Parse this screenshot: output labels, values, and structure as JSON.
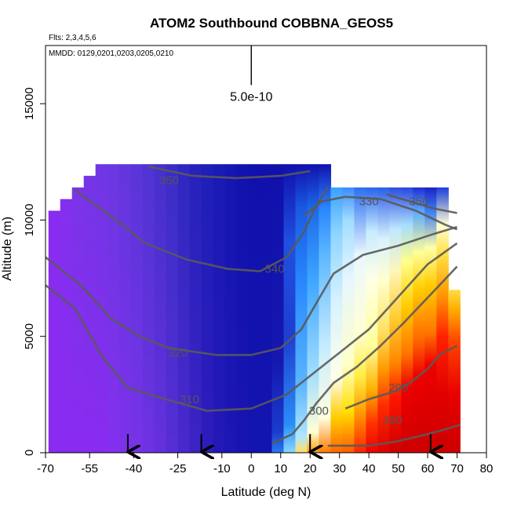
{
  "chart_data": {
    "type": "heatmap",
    "title": "ATOM2 Southbound COBBNA_GEOS5",
    "subtitle_flights": "Flts: 2,3,4,5,6",
    "subtitle_dates": "MMDD: 0129,0201,0203,0205,0210",
    "xlabel": "Latitude (deg N)",
    "ylabel": "Altitude (m)",
    "xlim": [
      -70,
      80
    ],
    "ylim": [
      0,
      17500
    ],
    "x_ticks": [
      -70,
      -55,
      -40,
      -25,
      -10,
      0,
      10,
      20,
      30,
      40,
      50,
      60,
      70,
      80
    ],
    "y_ticks": [
      0,
      5000,
      10000,
      15000
    ],
    "scale_bar_label": "5.0e-10",
    "scale_bar_x": 0,
    "scale_bar_y_range": [
      15800,
      17500
    ],
    "arrow_latitudes": [
      -42,
      -17,
      20,
      61
    ],
    "field_columns": [
      {
        "lat": -67,
        "top": 10400,
        "profile": [
          [
            0,
            "#8a2bf0"
          ],
          [
            10400,
            "#8a2bf0"
          ]
        ]
      },
      {
        "lat": -63,
        "top": 10900,
        "profile": [
          [
            0,
            "#8a2bf0"
          ],
          [
            10900,
            "#8330ee"
          ]
        ]
      },
      {
        "lat": -59,
        "top": 11400,
        "profile": [
          [
            0,
            "#8a2bf0"
          ],
          [
            11400,
            "#7a34e8"
          ]
        ]
      },
      {
        "lat": -55,
        "top": 11900,
        "profile": [
          [
            0,
            "#8a2bf0"
          ],
          [
            11900,
            "#7535e6"
          ]
        ]
      },
      {
        "lat": -51,
        "top": 12400,
        "profile": [
          [
            0,
            "#8a2bf0"
          ],
          [
            12400,
            "#7036e4"
          ]
        ]
      },
      {
        "lat": -47,
        "top": 12400,
        "profile": [
          [
            0,
            "#8430ee"
          ],
          [
            12400,
            "#6a37e0"
          ]
        ]
      },
      {
        "lat": -43,
        "top": 12400,
        "profile": [
          [
            0,
            "#7d31ea"
          ],
          [
            12400,
            "#6236dc"
          ]
        ]
      },
      {
        "lat": -39,
        "top": 12400,
        "profile": [
          [
            0,
            "#7733e8"
          ],
          [
            12400,
            "#5a35d8"
          ]
        ]
      },
      {
        "lat": -35,
        "top": 12400,
        "profile": [
          [
            0,
            "#6f32e2"
          ],
          [
            12400,
            "#5033d2"
          ]
        ]
      },
      {
        "lat": -31,
        "top": 12400,
        "profile": [
          [
            0,
            "#6530dc"
          ],
          [
            12400,
            "#4630cc"
          ]
        ]
      },
      {
        "lat": -27,
        "top": 12400,
        "profile": [
          [
            0,
            "#572ed4"
          ],
          [
            12400,
            "#3a2ec6"
          ]
        ]
      },
      {
        "lat": -23,
        "top": 12400,
        "profile": [
          [
            0,
            "#4a28cc"
          ],
          [
            12400,
            "#2f28c0"
          ]
        ]
      },
      {
        "lat": -19,
        "top": 12400,
        "profile": [
          [
            0,
            "#3c22c4"
          ],
          [
            12400,
            "#2622bc"
          ]
        ]
      },
      {
        "lat": -15,
        "top": 12400,
        "profile": [
          [
            0,
            "#2e1cbc"
          ],
          [
            12400,
            "#1e1eb8"
          ]
        ]
      },
      {
        "lat": -11,
        "top": 12400,
        "profile": [
          [
            0,
            "#2418b6"
          ],
          [
            12400,
            "#1a1ab4"
          ]
        ]
      },
      {
        "lat": -7,
        "top": 12400,
        "profile": [
          [
            0,
            "#1c16b2"
          ],
          [
            12400,
            "#1616b0"
          ]
        ]
      },
      {
        "lat": -3,
        "top": 12400,
        "profile": [
          [
            0,
            "#1814b0"
          ],
          [
            12400,
            "#1212ae"
          ]
        ]
      },
      {
        "lat": 1,
        "top": 12400,
        "profile": [
          [
            0,
            "#1414ae"
          ],
          [
            12400,
            "#1010ac"
          ]
        ]
      },
      {
        "lat": 5,
        "top": 12400,
        "profile": [
          [
            0,
            "#1414b0"
          ],
          [
            12400,
            "#1010ac"
          ]
        ]
      },
      {
        "lat": 9,
        "top": 12400,
        "profile": [
          [
            0,
            "#2a7af0"
          ],
          [
            900,
            "#1a3ccc"
          ],
          [
            4000,
            "#1616b0"
          ],
          [
            12400,
            "#1010ac"
          ]
        ]
      },
      {
        "lat": 13,
        "top": 12400,
        "profile": [
          [
            0,
            "#8ad8ff"
          ],
          [
            1200,
            "#2a8ef6"
          ],
          [
            5000,
            "#1e3ed0"
          ],
          [
            9000,
            "#2050e0"
          ],
          [
            12400,
            "#1010ac"
          ]
        ]
      },
      {
        "lat": 17,
        "top": 12400,
        "profile": [
          [
            0,
            "#ffe066"
          ],
          [
            700,
            "#aee6ff"
          ],
          [
            3000,
            "#5ab4ff"
          ],
          [
            7000,
            "#2a8cff"
          ],
          [
            10500,
            "#1a5ae0"
          ],
          [
            12400,
            "#1010ac"
          ]
        ]
      },
      {
        "lat": 21,
        "top": 12400,
        "profile": [
          [
            0,
            "#ff9a00"
          ],
          [
            900,
            "#ffffd8"
          ],
          [
            3500,
            "#9fdcff"
          ],
          [
            7500,
            "#3ca4ff"
          ],
          [
            10500,
            "#1c6ae8"
          ],
          [
            12400,
            "#1010ac"
          ]
        ]
      },
      {
        "lat": 25,
        "top": 12400,
        "profile": [
          [
            0,
            "#ff7a00"
          ],
          [
            1500,
            "#ffffe0"
          ],
          [
            4500,
            "#c8ecff"
          ],
          [
            8500,
            "#5cb8ff"
          ],
          [
            10500,
            "#2a86ff"
          ],
          [
            12400,
            "#1212ae"
          ]
        ]
      },
      {
        "lat": 29,
        "top": 11400,
        "profile": [
          [
            0,
            "#ff6600"
          ],
          [
            1500,
            "#ffcc00"
          ],
          [
            3200,
            "#ffffe8"
          ],
          [
            6500,
            "#d8f2ff"
          ],
          [
            9500,
            "#8ad4ff"
          ],
          [
            11400,
            "#3aa0ff"
          ]
        ]
      },
      {
        "lat": 33,
        "top": 11400,
        "profile": [
          [
            0,
            "#ff5a00"
          ],
          [
            1800,
            "#ffe000"
          ],
          [
            3800,
            "#ffffc8"
          ],
          [
            7500,
            "#e6f6ff"
          ],
          [
            10000,
            "#a0dcff"
          ],
          [
            11400,
            "#3a8cff"
          ]
        ]
      },
      {
        "lat": 37,
        "top": 11400,
        "profile": [
          [
            0,
            "#ff2200"
          ],
          [
            1700,
            "#ff9900"
          ],
          [
            3300,
            "#ffee44"
          ],
          [
            5200,
            "#ffffd4"
          ],
          [
            8500,
            "#eaf8ff"
          ],
          [
            11400,
            "#2a70f0"
          ]
        ]
      },
      {
        "lat": 41,
        "top": 11400,
        "profile": [
          [
            0,
            "#ee0000"
          ],
          [
            1300,
            "#ff3300"
          ],
          [
            2700,
            "#ffb000"
          ],
          [
            4600,
            "#ffff99"
          ],
          [
            7500,
            "#ffffe8"
          ],
          [
            9500,
            "#c8ecff"
          ],
          [
            11400,
            "#2a64ec"
          ]
        ]
      },
      {
        "lat": 45,
        "top": 11400,
        "profile": [
          [
            0,
            "#dd0000"
          ],
          [
            2000,
            "#ff2a00"
          ],
          [
            3600,
            "#ff9a00"
          ],
          [
            5200,
            "#ffe060"
          ],
          [
            7400,
            "#ffffd0"
          ],
          [
            9200,
            "#d8f2ff"
          ],
          [
            11400,
            "#2a5ee8"
          ]
        ]
      },
      {
        "lat": 49,
        "top": 11400,
        "profile": [
          [
            0,
            "#cc0000"
          ],
          [
            2400,
            "#ff1500"
          ],
          [
            3900,
            "#ff8800"
          ],
          [
            5800,
            "#ffcc33"
          ],
          [
            7800,
            "#fff6b8"
          ],
          [
            9600,
            "#bfe8ff"
          ],
          [
            11400,
            "#2a4ee0"
          ]
        ]
      },
      {
        "lat": 53,
        "top": 11400,
        "profile": [
          [
            0,
            "#cc0000"
          ],
          [
            2800,
            "#ee0000"
          ],
          [
            4300,
            "#ff7700"
          ],
          [
            6300,
            "#ffcc00"
          ],
          [
            8200,
            "#ffff88"
          ],
          [
            9800,
            "#a6ddff"
          ],
          [
            11400,
            "#2846e0"
          ]
        ]
      },
      {
        "lat": 57,
        "top": 11400,
        "profile": [
          [
            0,
            "#cc0000"
          ],
          [
            3300,
            "#ee0000"
          ],
          [
            4900,
            "#ff6a00"
          ],
          [
            7000,
            "#ffcc00"
          ],
          [
            8600,
            "#ffff99"
          ],
          [
            10400,
            "#5aa8ff"
          ],
          [
            11400,
            "#1e2ed0"
          ]
        ]
      },
      {
        "lat": 61,
        "top": 11400,
        "profile": [
          [
            0,
            "#cc0000"
          ],
          [
            3800,
            "#ee0000"
          ],
          [
            5200,
            "#ff7700"
          ],
          [
            7200,
            "#ffcc00"
          ],
          [
            8800,
            "#ffffaa"
          ],
          [
            10400,
            "#3a7cf4"
          ],
          [
            11400,
            "#1a22c8"
          ]
        ]
      },
      {
        "lat": 65,
        "top": 11400,
        "profile": [
          [
            0,
            "#cc0000"
          ],
          [
            2500,
            "#e00000"
          ],
          [
            5000,
            "#ff2200"
          ],
          [
            6800,
            "#ff9900"
          ],
          [
            8500,
            "#ffe044"
          ],
          [
            9800,
            "#ffffd4"
          ],
          [
            11400,
            "#1a3ed8"
          ]
        ]
      },
      {
        "lat": 69,
        "top": 7000,
        "profile": [
          [
            0,
            "#cc0000"
          ],
          [
            2500,
            "#e80000"
          ],
          [
            4800,
            "#ff4400"
          ],
          [
            6200,
            "#ffb000"
          ],
          [
            7000,
            "#ffdd44"
          ]
        ]
      }
    ],
    "contours": [
      {
        "label": "280",
        "label_at": [
          48,
          1400
        ],
        "points": [
          [
            26,
            300
          ],
          [
            40,
            300
          ],
          [
            50,
            500
          ],
          [
            60,
            800
          ],
          [
            66,
            1000
          ],
          [
            71,
            1200
          ]
        ]
      },
      {
        "label": "290",
        "label_at": [
          50,
          2800
        ],
        "points": [
          [
            32,
            1900
          ],
          [
            40,
            2300
          ],
          [
            48,
            2600
          ],
          [
            54,
            3000
          ],
          [
            60,
            3600
          ],
          [
            64,
            4200
          ],
          [
            70,
            4600
          ]
        ]
      },
      {
        "label": "300",
        "label_at": [
          23,
          1800
        ],
        "points": [
          [
            7,
            400
          ],
          [
            14,
            800
          ],
          [
            18,
            1400
          ],
          [
            22,
            2100
          ],
          [
            28,
            3000
          ],
          [
            36,
            3700
          ],
          [
            44,
            4600
          ],
          [
            52,
            5600
          ],
          [
            58,
            6400
          ],
          [
            64,
            7200
          ],
          [
            70,
            8000
          ]
        ]
      },
      {
        "label": "310",
        "label_at": [
          -21,
          2300
        ],
        "points": [
          [
            -70,
            7200
          ],
          [
            -60,
            6200
          ],
          [
            -50,
            4000
          ],
          [
            -42,
            2800
          ],
          [
            -32,
            2400
          ],
          [
            -15,
            1800
          ],
          [
            0,
            1900
          ],
          [
            12,
            2500
          ],
          [
            20,
            3300
          ],
          [
            30,
            4300
          ],
          [
            40,
            5300
          ],
          [
            50,
            6700
          ],
          [
            60,
            8100
          ],
          [
            70,
            9000
          ]
        ]
      },
      {
        "label": "320",
        "label_at": [
          -25,
          4300
        ],
        "points": [
          [
            -70,
            8400
          ],
          [
            -58,
            7200
          ],
          [
            -48,
            5800
          ],
          [
            -38,
            5000
          ],
          [
            -28,
            4500
          ],
          [
            -12,
            4200
          ],
          [
            0,
            4200
          ],
          [
            10,
            4500
          ],
          [
            17,
            5300
          ],
          [
            22,
            6400
          ],
          [
            28,
            7700
          ],
          [
            38,
            8500
          ],
          [
            50,
            8900
          ],
          [
            62,
            9400
          ],
          [
            70,
            9700
          ]
        ]
      },
      {
        "label": "330",
        "label_at": [
          40,
          10800
        ],
        "points": [
          [
            18,
            10200
          ],
          [
            24,
            10800
          ],
          [
            32,
            11000
          ],
          [
            44,
            10900
          ],
          [
            56,
            10400
          ],
          [
            66,
            9800
          ],
          [
            70,
            9600
          ]
        ]
      },
      {
        "label": "340",
        "label_at": [
          8,
          7900
        ],
        "points": [
          [
            -60,
            11300
          ],
          [
            -46,
            10000
          ],
          [
            -36,
            9000
          ],
          [
            -22,
            8300
          ],
          [
            -8,
            7900
          ],
          [
            3,
            7800
          ],
          [
            12,
            8400
          ],
          [
            18,
            9500
          ],
          [
            22,
            10600
          ],
          [
            26,
            11400
          ]
        ]
      },
      {
        "label": "350",
        "label_at": [
          -28,
          11700
        ],
        "points": [
          [
            -35,
            12300
          ],
          [
            -20,
            11900
          ],
          [
            -5,
            11800
          ],
          [
            10,
            11900
          ],
          [
            20,
            12100
          ]
        ]
      },
      {
        "label": "350",
        "label_at": [
          57,
          10800
        ],
        "points": [
          [
            46,
            11100
          ],
          [
            54,
            10800
          ],
          [
            62,
            10500
          ],
          [
            70,
            10300
          ]
        ]
      }
    ]
  }
}
